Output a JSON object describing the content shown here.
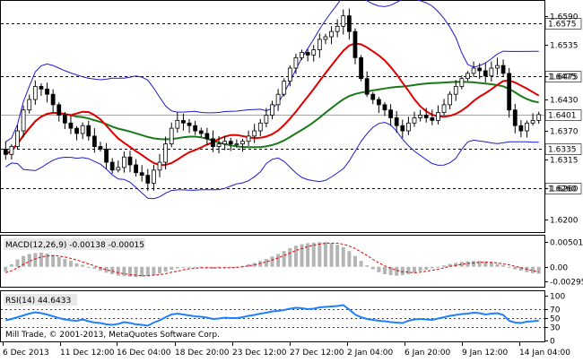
{
  "chart_data": [
    {
      "type": "candlestick",
      "panel": "main",
      "y_ticks": [
        "1.6590",
        "1.6535",
        "1.6475",
        "1.6430",
        "1.6370",
        "1.6315",
        "1.6260",
        "1.6200"
      ],
      "ylim": [
        1.6185,
        1.661
      ],
      "highlighted_levels": [
        {
          "value": 1.6575,
          "label": "1.6575",
          "dashed": true
        },
        {
          "value": 1.6475,
          "label": "1.6475",
          "dashed": true
        },
        {
          "value": 1.6401,
          "label": "1.6401",
          "dashed": false
        },
        {
          "value": 1.6335,
          "label": "1.6335",
          "dashed": true
        },
        {
          "value": 1.626,
          "label": "1.6260",
          "dashed": true
        }
      ],
      "overlays": [
        {
          "name": "Bollinger Bands",
          "color": "#1c1ccc"
        },
        {
          "name": "MA fast",
          "color": "#e00000"
        },
        {
          "name": "MA slow",
          "color": "#1a7a1a"
        }
      ],
      "closes": [
        1.6325,
        1.634,
        1.637,
        1.641,
        1.643,
        1.6455,
        1.645,
        1.644,
        1.642,
        1.64,
        1.6385,
        1.6375,
        1.6365,
        1.638,
        1.636,
        1.634,
        1.6335,
        1.631,
        1.6295,
        1.63,
        1.632,
        1.6305,
        1.629,
        1.6285,
        1.627,
        1.6295,
        1.631,
        1.6345,
        1.6375,
        1.639,
        1.6385,
        1.638,
        1.637,
        1.6365,
        1.6355,
        1.634,
        1.6345,
        1.635,
        1.6345,
        1.6345,
        1.635,
        1.636,
        1.637,
        1.6385,
        1.64,
        1.642,
        1.644,
        1.6465,
        1.649,
        1.651,
        1.652,
        1.6515,
        1.6525,
        1.6545,
        1.655,
        1.656,
        1.657,
        1.659,
        1.656,
        1.651,
        1.647,
        1.644,
        1.643,
        1.642,
        1.641,
        1.6395,
        1.638,
        1.637,
        1.6385,
        1.6395,
        1.64,
        1.6395,
        1.639,
        1.6405,
        1.642,
        1.644,
        1.6455,
        1.647,
        1.648,
        1.649,
        1.6485,
        1.6475,
        1.649,
        1.6495,
        1.648,
        1.641,
        1.638,
        1.637,
        1.6385,
        1.639,
        1.6401
      ]
    },
    {
      "type": "histogram",
      "panel": "macd",
      "label": "MACD(12,26,9) -0.00138 -0.00015",
      "y_ticks": [
        "0.00501",
        "0.00",
        "-0.00295"
      ],
      "ylim": [
        -0.0035,
        0.0056
      ],
      "histogram": [
        -0.001,
        0.0005,
        0.0015,
        0.0022,
        0.0026,
        0.0028,
        0.0029,
        0.0027,
        0.0024,
        0.002,
        0.0016,
        0.0012,
        0.0007,
        0.0004,
        0.0,
        -0.0004,
        -0.0008,
        -0.0012,
        -0.0015,
        -0.0018,
        -0.0019,
        -0.002,
        -0.0021,
        -0.002,
        -0.0019,
        -0.0017,
        -0.0014,
        -0.001,
        -0.0006,
        -0.0003,
        -0.0001,
        0.0,
        -0.0001,
        -0.0002,
        -0.0003,
        -0.0004,
        -0.0003,
        -0.0002,
        -0.0001,
        0.0,
        0.0002,
        0.0005,
        0.0008,
        0.0012,
        0.0016,
        0.0021,
        0.0026,
        0.0032,
        0.0038,
        0.0043,
        0.0046,
        0.0048,
        0.0049,
        0.005,
        0.005,
        0.0048,
        0.0045,
        0.004,
        0.0032,
        0.0022,
        0.0012,
        0.0003,
        -0.0005,
        -0.0011,
        -0.0015,
        -0.0017,
        -0.0018,
        -0.0017,
        -0.0015,
        -0.0012,
        -0.0009,
        -0.0006,
        -0.0003,
        0.0,
        0.0003,
        0.0006,
        0.0008,
        0.001,
        0.0011,
        0.0012,
        0.0012,
        0.0011,
        0.0009,
        0.0006,
        0.0003,
        -0.0001,
        -0.0005,
        -0.0008,
        -0.0011,
        -0.0013,
        -0.0014
      ],
      "signal": [
        -0.0012,
        -0.0008,
        -0.0002,
        0.0005,
        0.0011,
        0.0016,
        0.002,
        0.0022,
        0.0023,
        0.0022,
        0.002,
        0.0017,
        0.0014,
        0.001,
        0.0006,
        0.0002,
        -0.0002,
        -0.0006,
        -0.0009,
        -0.0012,
        -0.0014,
        -0.0016,
        -0.0017,
        -0.0018,
        -0.0018,
        -0.0017,
        -0.0016,
        -0.0014,
        -0.0011,
        -0.0009,
        -0.0006,
        -0.0004,
        -0.0003,
        -0.0002,
        -0.0002,
        -0.0002,
        -0.0002,
        -0.0002,
        -0.0002,
        -0.0001,
        0.0,
        0.0002,
        0.0004,
        0.0007,
        0.001,
        0.0014,
        0.0018,
        0.0023,
        0.0028,
        0.0033,
        0.0037,
        0.0041,
        0.0044,
        0.0046,
        0.0048,
        0.0048,
        0.0048,
        0.0046,
        0.0042,
        0.0037,
        0.003,
        0.0023,
        0.0015,
        0.0008,
        0.0002,
        -0.0003,
        -0.0007,
        -0.001,
        -0.0011,
        -0.0012,
        -0.0011,
        -0.0009,
        -0.0007,
        -0.0005,
        -0.0002,
        0.0001,
        0.0003,
        0.0005,
        0.0007,
        0.0008,
        0.0009,
        0.0009,
        0.0009,
        0.0008,
        0.0006,
        0.0004,
        0.0001,
        -0.0002,
        -0.0005,
        -0.0008,
        -0.001
      ]
    },
    {
      "type": "line",
      "panel": "rsi",
      "label": "RSI(14) 44.6433",
      "y_ticks": [
        "100",
        "70",
        "50",
        "30",
        "0"
      ],
      "ylim": [
        0,
        100
      ],
      "levels": [
        30,
        50,
        70
      ],
      "values": [
        45,
        48,
        52,
        56,
        60,
        63,
        61,
        58,
        54,
        50,
        47,
        45,
        44,
        47,
        43,
        40,
        39,
        36,
        35,
        37,
        41,
        39,
        36,
        35,
        33,
        40,
        45,
        52,
        58,
        60,
        58,
        56,
        54,
        53,
        51,
        48,
        49,
        51,
        50,
        50,
        52,
        55,
        57,
        60,
        62,
        65,
        66,
        68,
        71,
        73,
        72,
        70,
        71,
        74,
        75,
        76,
        77,
        79,
        69,
        58,
        52,
        48,
        46,
        44,
        43,
        41,
        40,
        39,
        44,
        47,
        48,
        47,
        46,
        49,
        52,
        55,
        57,
        59,
        60,
        62,
        61,
        58,
        60,
        61,
        57,
        44,
        40,
        39,
        42,
        43,
        44.6
      ]
    }
  ],
  "x_labels": [
    "6 Dec 2013",
    "11 Dec 12:00",
    "16 Dec 04:00",
    "18 Dec 20:00",
    "23 Dec 12:00",
    "27 Dec 12:00",
    "2 Jan 04:00",
    "6 Jan 20:00",
    "9 Jan 12:00",
    "14 Jan 04:00"
  ],
  "footer_text": "Mill Trade, © 2001-2013, MetaQuotes Software Corp.",
  "colors": {
    "bull_candle": "#ffffff",
    "bear_candle": "#000000",
    "bollinger": "#1c1ccc",
    "ma_fast": "#e00000",
    "ma_slow": "#1a7a1a",
    "macd_hist": "#b4b4b4",
    "macd_signal": "#e00000",
    "rsi_line": "#1e80ff",
    "frame": "#000000"
  }
}
